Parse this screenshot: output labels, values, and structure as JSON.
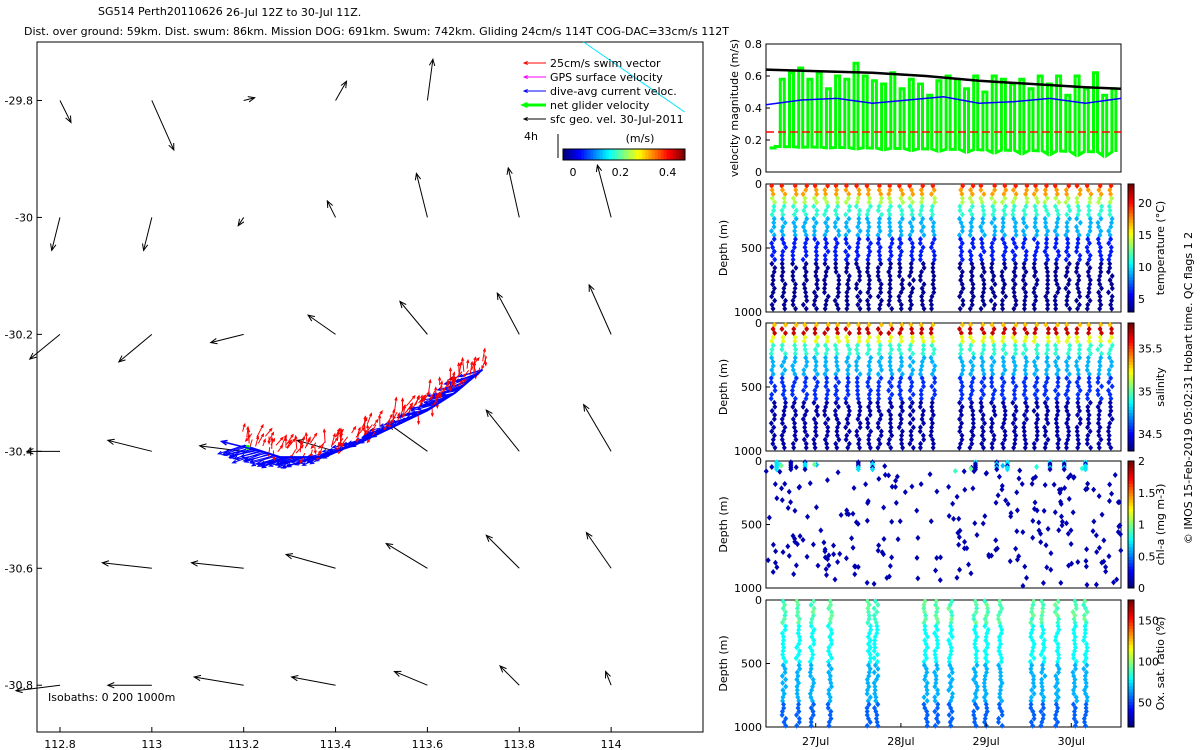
{
  "header": {
    "title": "SG514 Perth20110626",
    "range": "26-Jul 12Z to 30-Jul 11Z.",
    "stats": "Dist. over ground: 59km. Dist. swum: 86km. Mission DOG: 691km. Swum: 742km. Gliding 24cm/s 114T COG-DAC=33cm/s 112T"
  },
  "copyright": "© IMOS 15-Feb-2019 05:02:31 Hobart time. QC flags 1  2",
  "colors": {
    "swim_vector": "#ff0000",
    "gps_velocity": "#ff00ff",
    "dive_avg_current": "#0000ff",
    "net_glider": "#00ff00",
    "sfc_geo": "#000000",
    "isobath": "#00e5ff"
  },
  "map": {
    "legend": [
      {
        "label": "25cm/s swim vector",
        "color": "#ff0000"
      },
      {
        "label": "GPS surface velocity",
        "color": "#ff00ff"
      },
      {
        "label": "dive-avg current veloc.",
        "color": "#0000ff"
      },
      {
        "label": "net glider velocity",
        "color": "#00ff00"
      },
      {
        "label": "sfc geo. vel. 30-Jul-2011",
        "color": "#000000"
      }
    ],
    "legend_extra": "4h",
    "colorbar_title": "(m/s)",
    "colorbar_ticks": [
      "0",
      "0.2",
      "0.4"
    ],
    "isobath_label": "Isobaths: 0    200  1000m"
  },
  "chart_data": [
    {
      "type": "scatter",
      "name": "track-map",
      "xlabel": "",
      "ylabel": "",
      "xlim": [
        112.75,
        114.2
      ],
      "ylim": [
        -30.88,
        -29.7
      ],
      "xticks": [
        "112.8",
        "113",
        "113.2",
        "113.4",
        "113.6",
        "113.8",
        "114"
      ],
      "yticks": [
        "-29.8",
        "-30",
        "-30.2",
        "-30.4",
        "-30.6",
        "-30.8"
      ],
      "track": [
        [
          113.2,
          -30.39
        ],
        [
          113.28,
          -30.41
        ],
        [
          113.36,
          -30.41
        ],
        [
          113.44,
          -30.39
        ],
        [
          113.52,
          -30.36
        ],
        [
          113.6,
          -30.33
        ],
        [
          113.66,
          -30.3
        ],
        [
          113.72,
          -30.26
        ]
      ],
      "geo_vectors": [
        [
          112.8,
          -29.8,
          0.2,
          -0.4
        ],
        [
          113.0,
          -29.8,
          0.4,
          -0.9
        ],
        [
          113.2,
          -29.8,
          0.2,
          0.05
        ],
        [
          113.4,
          -29.8,
          0.2,
          0.35
        ],
        [
          113.6,
          -29.8,
          0.1,
          0.75
        ],
        [
          112.8,
          -30.0,
          -0.15,
          -0.6
        ],
        [
          113.0,
          -30.0,
          -0.15,
          -0.6
        ],
        [
          113.2,
          -30.0,
          -0.1,
          -0.15
        ],
        [
          113.4,
          -30.0,
          -0.15,
          0.3
        ],
        [
          113.6,
          -30.0,
          -0.2,
          0.8
        ],
        [
          113.8,
          -30.0,
          -0.2,
          0.9
        ],
        [
          114.0,
          -30.0,
          -0.25,
          0.95
        ],
        [
          112.8,
          -30.2,
          -0.55,
          -0.45
        ],
        [
          113.0,
          -30.2,
          -0.6,
          -0.5
        ],
        [
          113.2,
          -30.2,
          -0.6,
          -0.15
        ],
        [
          113.4,
          -30.2,
          -0.5,
          0.35
        ],
        [
          113.6,
          -30.2,
          -0.5,
          0.6
        ],
        [
          113.8,
          -30.2,
          -0.4,
          0.75
        ],
        [
          114.0,
          -30.2,
          -0.4,
          0.9
        ],
        [
          112.8,
          -30.4,
          -0.6,
          0.0
        ],
        [
          113.0,
          -30.4,
          -0.8,
          0.2
        ],
        [
          113.2,
          -30.4,
          -0.8,
          0.1
        ],
        [
          113.4,
          -30.4,
          -0.7,
          0.2
        ],
        [
          113.6,
          -30.4,
          -0.7,
          0.5
        ],
        [
          113.8,
          -30.4,
          -0.6,
          0.75
        ],
        [
          114.0,
          -30.4,
          -0.5,
          0.85
        ],
        [
          113.0,
          -30.6,
          -0.9,
          0.1
        ],
        [
          113.2,
          -30.6,
          -0.95,
          0.1
        ],
        [
          113.4,
          -30.6,
          -0.9,
          0.25
        ],
        [
          113.6,
          -30.6,
          -0.75,
          0.45
        ],
        [
          113.8,
          -30.6,
          -0.6,
          0.6
        ],
        [
          114.0,
          -30.6,
          -0.45,
          0.65
        ],
        [
          112.8,
          -30.8,
          -0.8,
          -0.1
        ],
        [
          113.0,
          -30.8,
          -0.8,
          0.0
        ],
        [
          113.2,
          -30.8,
          -0.9,
          0.15
        ],
        [
          113.4,
          -30.8,
          -0.8,
          0.15
        ],
        [
          113.6,
          -30.8,
          -0.6,
          0.25
        ],
        [
          113.8,
          -30.8,
          -0.35,
          0.35
        ],
        [
          114.0,
          -30.8,
          -0.1,
          0.25
        ]
      ]
    },
    {
      "type": "line",
      "name": "velocity-panel",
      "ylabel": "velocity magnitude (m/s)",
      "ylim": [
        0,
        0.8
      ],
      "yticks": [
        "0",
        "0.2",
        "0.4",
        "0.6",
        "0.8"
      ],
      "xlim": [
        0,
        1
      ],
      "series": [
        {
          "color": "#000000",
          "x": [
            0,
            0.15,
            0.3,
            0.45,
            0.6,
            0.75,
            0.9,
            1.0
          ],
          "values": [
            0.64,
            0.63,
            0.62,
            0.6,
            0.57,
            0.55,
            0.53,
            0.52
          ]
        },
        {
          "color": "#0000ff",
          "x": [
            0,
            0.1,
            0.2,
            0.3,
            0.4,
            0.5,
            0.6,
            0.7,
            0.8,
            0.9,
            1.0
          ],
          "values": [
            0.42,
            0.45,
            0.46,
            0.43,
            0.45,
            0.47,
            0.43,
            0.44,
            0.46,
            0.43,
            0.46
          ]
        },
        {
          "color": "#ff0000",
          "dashed": true,
          "x": [
            0,
            1
          ],
          "values": [
            0.25,
            0.25
          ]
        }
      ],
      "net_glider_values": [
        0.15,
        0.58,
        0.62,
        0.65,
        0.58,
        0.62,
        0.52,
        0.6,
        0.58,
        0.68,
        0.6,
        0.57,
        0.55,
        0.62,
        0.52,
        0.58,
        0.55,
        0.48,
        0.57,
        0.6,
        0.58,
        0.52,
        0.6,
        0.5,
        0.6,
        0.58,
        0.55,
        0.58,
        0.52,
        0.6,
        0.55,
        0.6,
        0.48,
        0.6,
        0.52,
        0.62,
        0.48,
        0.52
      ]
    },
    {
      "type": "scatter",
      "name": "temperature-panel",
      "ylabel": "Depth (m)",
      "ylim": [
        1000,
        0
      ],
      "yticks": [
        "0",
        "500",
        "1000"
      ],
      "colorbar_label": "temperature (°C)",
      "colorbar_ticks": [
        "5",
        "10",
        "15",
        "20"
      ],
      "clim": [
        3,
        23
      ]
    },
    {
      "type": "scatter",
      "name": "salinity-panel",
      "ylabel": "Depth (m)",
      "ylim": [
        1000,
        0
      ],
      "yticks": [
        "0",
        "500",
        "1000"
      ],
      "colorbar_label": "salinity",
      "colorbar_ticks": [
        "34.5",
        "35",
        "35.5"
      ],
      "clim": [
        34.3,
        35.8
      ]
    },
    {
      "type": "scatter",
      "name": "chla-panel",
      "ylabel": "Depth (m)",
      "ylim": [
        1000,
        0
      ],
      "yticks": [
        "0",
        "500",
        "1000"
      ],
      "colorbar_label": "chl-a (mg m-3)",
      "colorbar_ticks": [
        "0",
        "0.5",
        "1",
        "1.5",
        "2"
      ],
      "clim": [
        0,
        2
      ]
    },
    {
      "type": "scatter",
      "name": "oxygen-panel",
      "ylabel": "Depth (m)",
      "ylim": [
        1000,
        0
      ],
      "yticks": [
        "0",
        "500",
        "1000"
      ],
      "colorbar_label": "Ox. sat. ratio (%)",
      "colorbar_ticks": [
        "50",
        "100",
        "150"
      ],
      "clim": [
        20,
        175
      ]
    }
  ],
  "time_axis": {
    "ticks": [
      "27Jul",
      "28Jul",
      "29Jul",
      "30Jul"
    ]
  }
}
